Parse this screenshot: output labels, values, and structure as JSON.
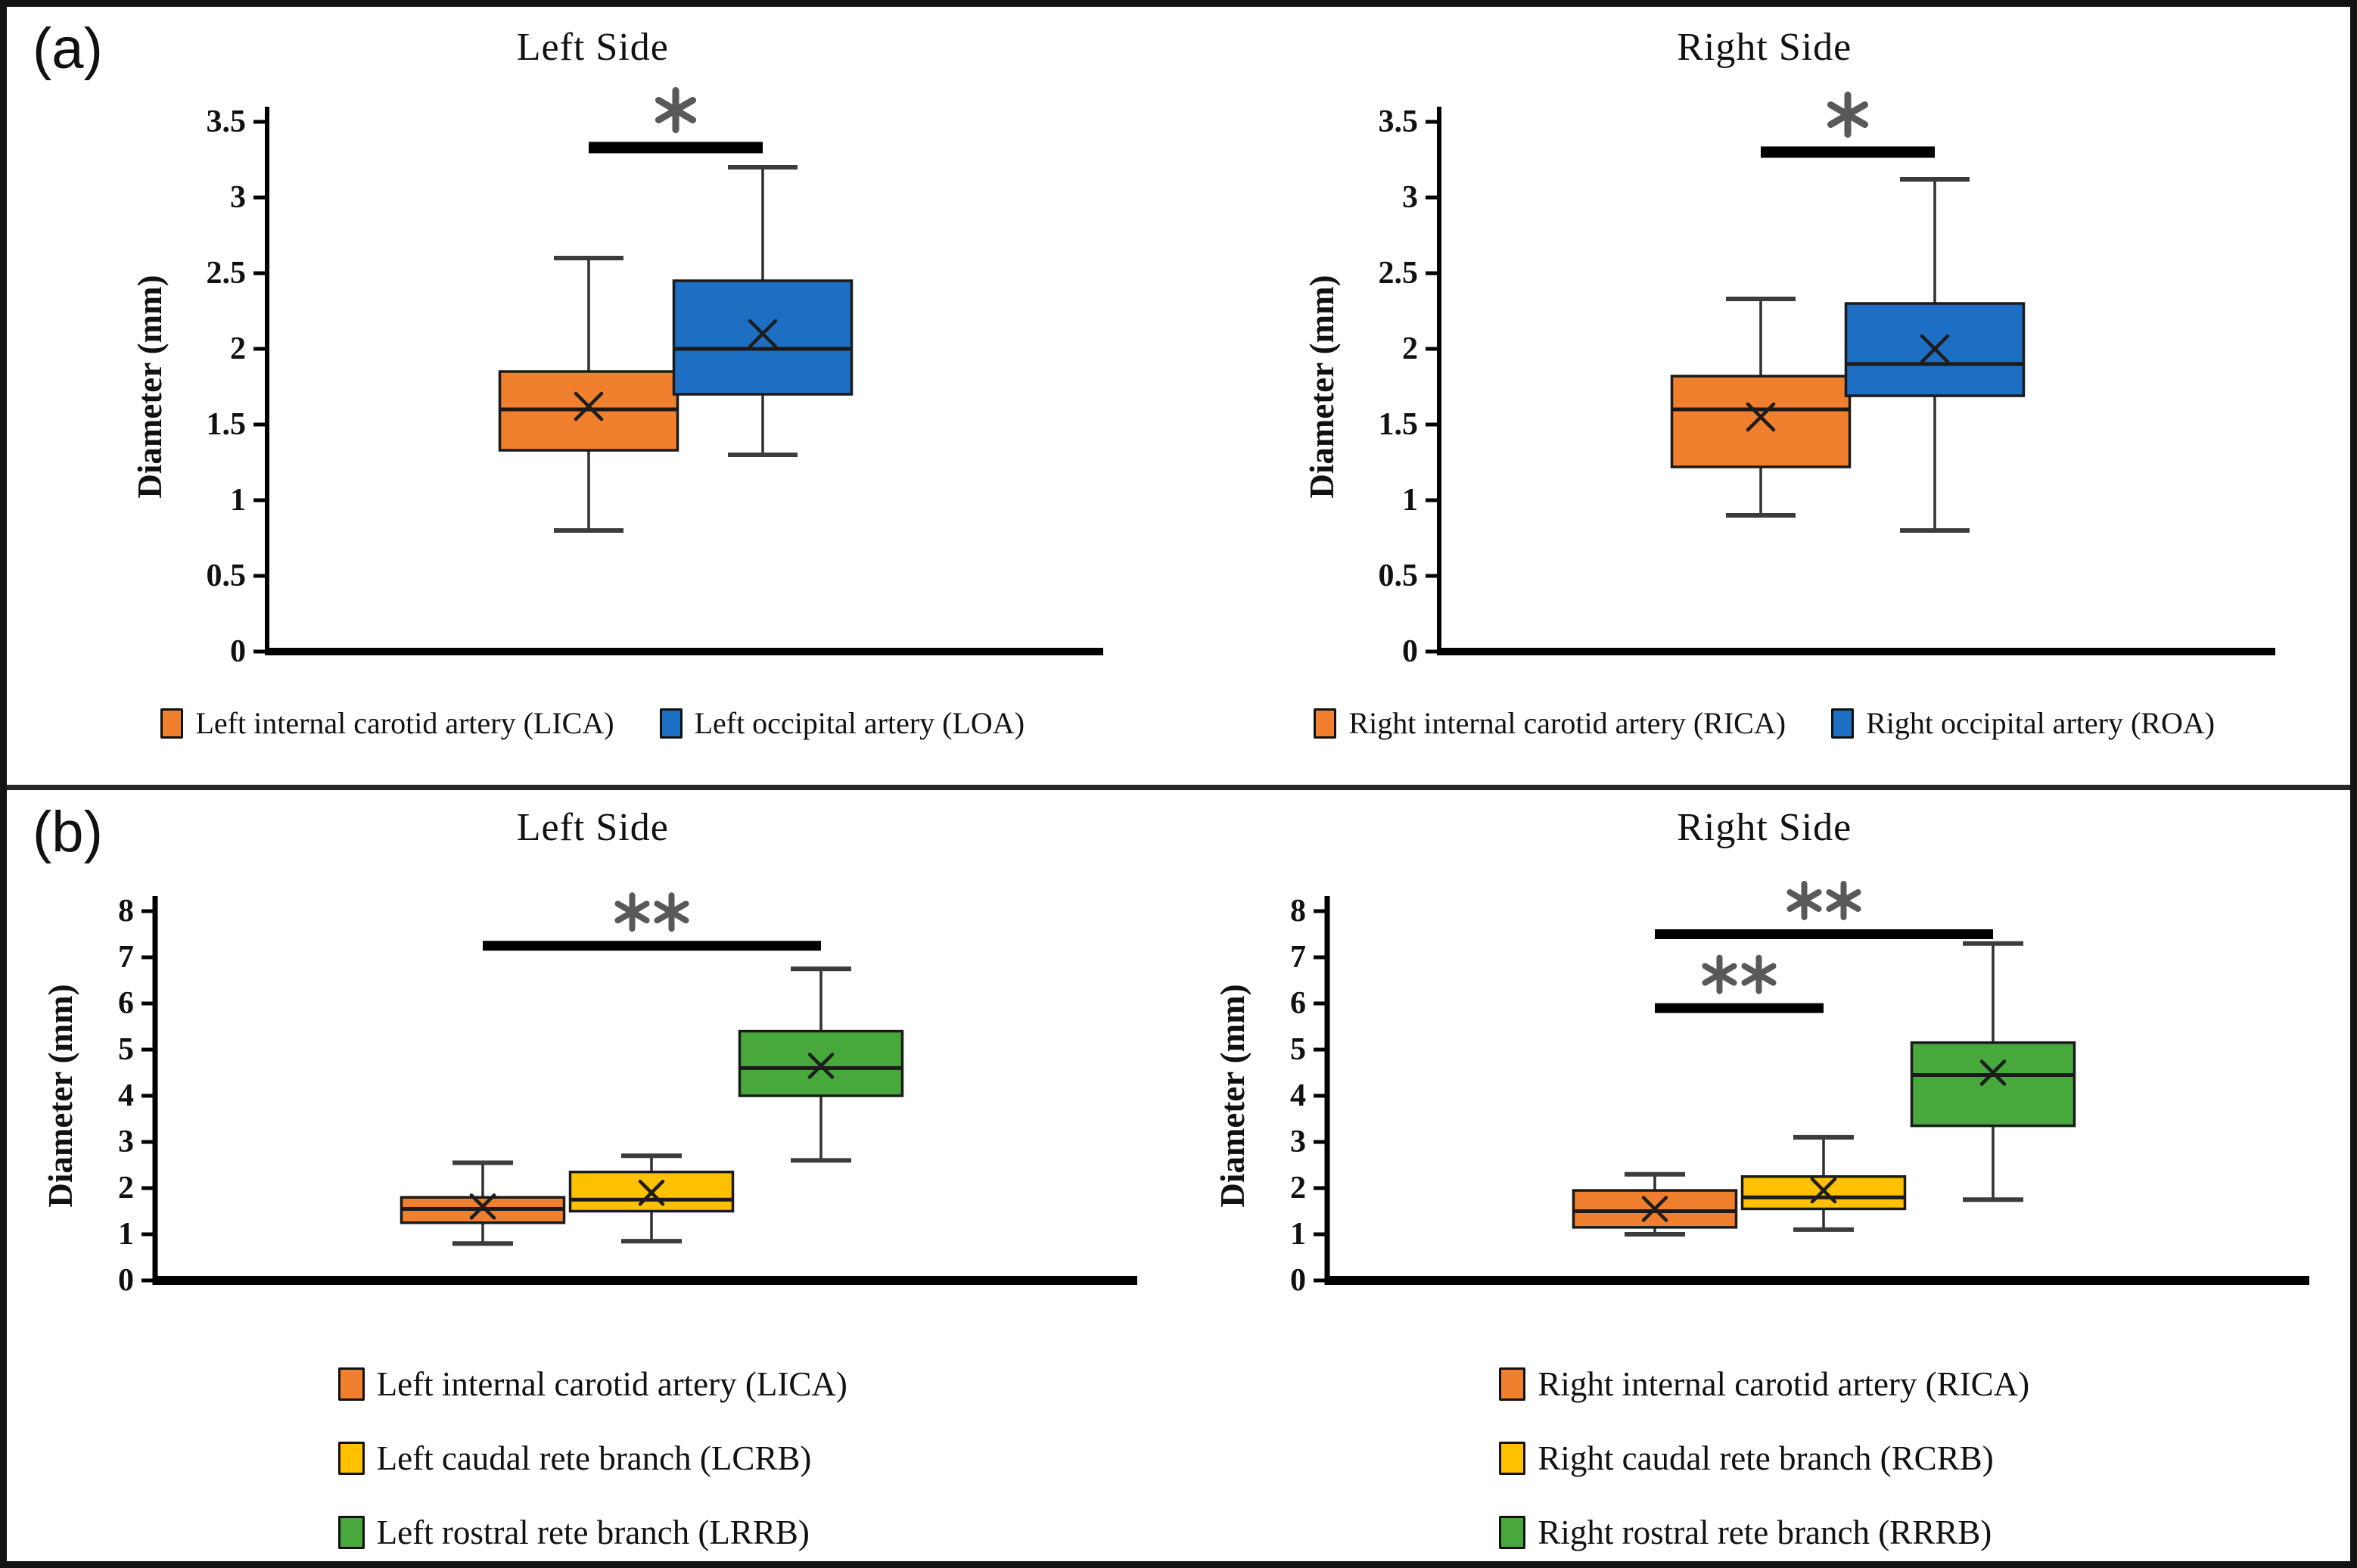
{
  "panels": [
    {
      "label": "(a)"
    },
    {
      "label": "(b)"
    }
  ],
  "colors": {
    "orange": "#F0802D",
    "blue": "#1D6FC4",
    "yellow": "#FFC000",
    "green": "#47A83C",
    "significance_bar": "#000000",
    "asterisk": "#595959",
    "axis": "#000000"
  },
  "chart_data": [
    {
      "type": "box",
      "panel": "a",
      "title": "Left Side",
      "ylabel": "Diameter (mm)",
      "ylim": [
        0,
        3.5
      ],
      "ytick_step": 0.5,
      "series": [
        {
          "name": "Left internal carotid artery (LICA)",
          "color": "#F0802D",
          "whisker_low": 0.8,
          "q1": 1.33,
          "median": 1.6,
          "mean": 1.62,
          "q3": 1.85,
          "whisker_high": 2.6
        },
        {
          "name": "Left occipital artery (LOA)",
          "color": "#1D6FC4",
          "whisker_low": 1.3,
          "q1": 1.7,
          "median": 2.0,
          "mean": 2.1,
          "q3": 2.45,
          "whisker_high": 3.2
        }
      ],
      "significance": [
        {
          "between": [
            0,
            1
          ],
          "y": 3.33,
          "label": "*"
        }
      ],
      "legend_layout": "row"
    },
    {
      "type": "box",
      "panel": "a",
      "title": "Right Side",
      "ylabel": "Diameter (mm)",
      "ylim": [
        0,
        3.5
      ],
      "ytick_step": 0.5,
      "series": [
        {
          "name": "Right internal carotid artery (RICA)",
          "color": "#F0802D",
          "whisker_low": 0.9,
          "q1": 1.22,
          "median": 1.6,
          "mean": 1.55,
          "q3": 1.82,
          "whisker_high": 2.33
        },
        {
          "name": "Right occipital artery (ROA)",
          "color": "#1D6FC4",
          "whisker_low": 0.8,
          "q1": 1.69,
          "median": 1.9,
          "mean": 2.0,
          "q3": 2.3,
          "whisker_high": 3.12
        }
      ],
      "significance": [
        {
          "between": [
            0,
            1
          ],
          "y": 3.3,
          "label": "*"
        }
      ],
      "legend_layout": "row"
    },
    {
      "type": "box",
      "panel": "b",
      "title": "Left Side",
      "ylabel": "Diameter (mm)",
      "ylim": [
        0,
        8
      ],
      "ytick_step": 1,
      "series": [
        {
          "name": "Left internal carotid artery (LICA)",
          "color": "#F0802D",
          "whisker_low": 0.8,
          "q1": 1.25,
          "median": 1.55,
          "mean": 1.6,
          "q3": 1.8,
          "whisker_high": 2.55
        },
        {
          "name": "Left caudal rete branch (LCRB)",
          "color": "#FFC000",
          "whisker_low": 0.85,
          "q1": 1.5,
          "median": 1.75,
          "mean": 1.9,
          "q3": 2.35,
          "whisker_high": 2.7
        },
        {
          "name": "Left rostral rete branch (LRRB)",
          "color": "#47A83C",
          "whisker_low": 2.6,
          "q1": 4.0,
          "median": 4.6,
          "mean": 4.65,
          "q3": 5.4,
          "whisker_high": 6.75
        }
      ],
      "significance": [
        {
          "between": [
            0,
            2
          ],
          "y": 7.25,
          "label": "**"
        }
      ],
      "legend_layout": "column"
    },
    {
      "type": "box",
      "panel": "b",
      "title": "Right Side",
      "ylabel": "Diameter (mm)",
      "ylim": [
        0,
        8
      ],
      "ytick_step": 1,
      "series": [
        {
          "name": "Right internal carotid artery (RICA)",
          "color": "#F0802D",
          "whisker_low": 1.0,
          "q1": 1.15,
          "median": 1.5,
          "mean": 1.55,
          "q3": 1.95,
          "whisker_high": 2.3
        },
        {
          "name": "Right caudal rete branch (RCRB)",
          "color": "#FFC000",
          "whisker_low": 1.1,
          "q1": 1.55,
          "median": 1.8,
          "mean": 1.95,
          "q3": 2.25,
          "whisker_high": 3.1
        },
        {
          "name": "Right rostral rete branch (RRRB)",
          "color": "#47A83C",
          "whisker_low": 1.75,
          "q1": 3.35,
          "median": 4.45,
          "mean": 4.5,
          "q3": 5.15,
          "whisker_high": 7.3
        }
      ],
      "significance": [
        {
          "between": [
            0,
            1
          ],
          "y": 5.9,
          "label": "**"
        },
        {
          "between": [
            0,
            2
          ],
          "y": 7.5,
          "label": "**"
        }
      ],
      "legend_layout": "column"
    }
  ]
}
